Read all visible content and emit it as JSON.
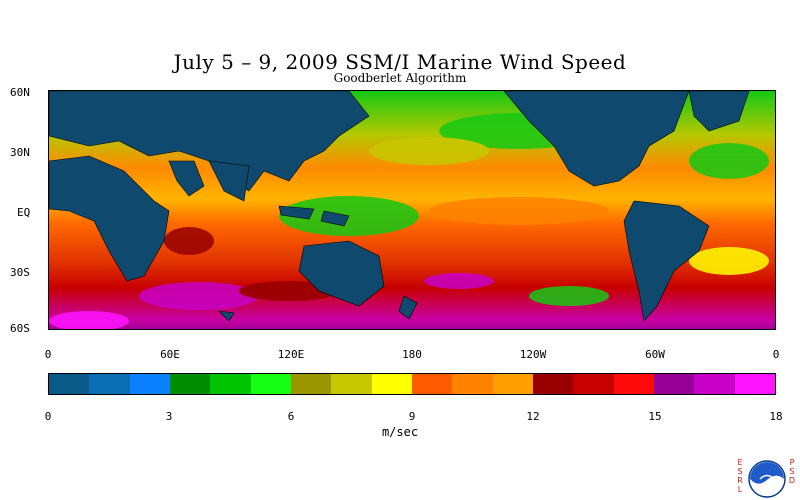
{
  "title": "July 5 – 9, 2009 SSM/I Marine Wind Speed",
  "subtitle": "Goodberlet Algorithm",
  "lat_labels": [
    "60N",
    "30N",
    "EQ",
    "30S",
    "60S"
  ],
  "lon_labels": [
    "0",
    "60E",
    "120E",
    "180",
    "120W",
    "60W",
    "0"
  ],
  "colorbar": {
    "colors": [
      "#0a5a87",
      "#0a6eb4",
      "#0a82ff",
      "#008c00",
      "#00c300",
      "#14ff14",
      "#9a9600",
      "#c8c800",
      "#ffff00",
      "#ff5a00",
      "#ff8200",
      "#ffa000",
      "#960000",
      "#c80000",
      "#ff0a0a",
      "#960096",
      "#c800c8",
      "#ff14ff"
    ],
    "tick_labels": [
      "0",
      "3",
      "6",
      "9",
      "12",
      "15",
      "18"
    ],
    "units": "m/sec"
  },
  "land_color": "#0f4a6e",
  "logo": {
    "left_text": "ESRL",
    "right_text": "PSD"
  }
}
